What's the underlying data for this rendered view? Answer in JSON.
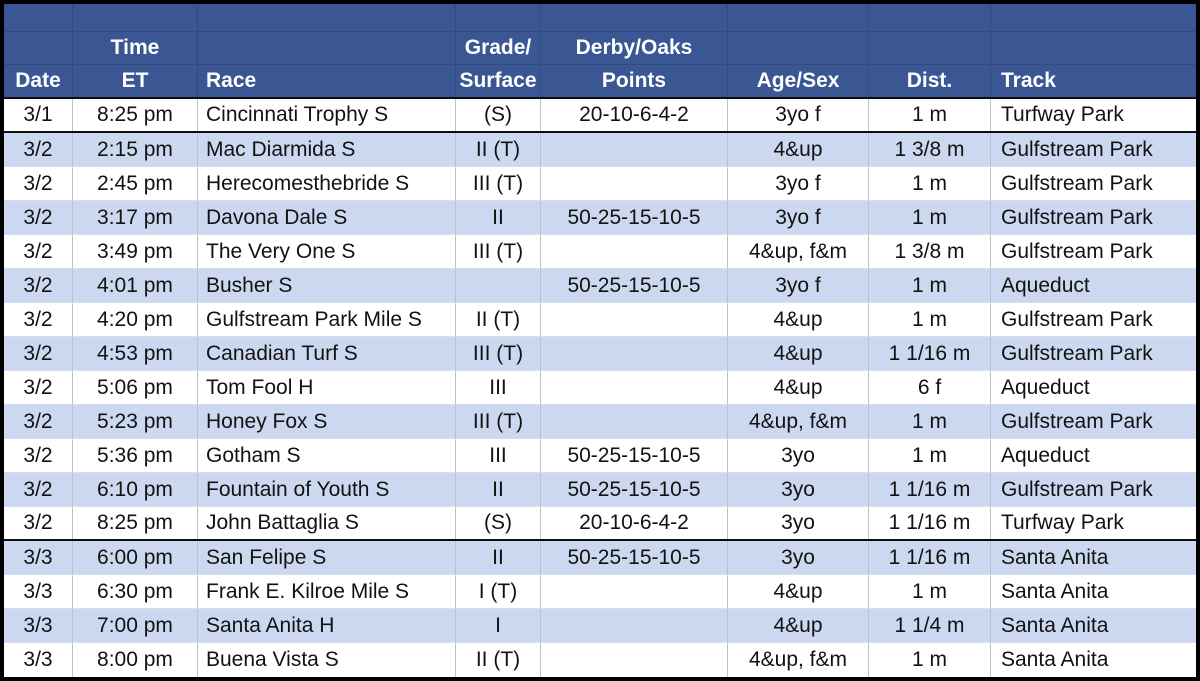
{
  "colors": {
    "header_fill": "#3A5794",
    "header_gridline": "#314B80",
    "banded_row_fill": "#CCD8F0",
    "plain_row_fill": "#FFFFFF",
    "data_gridline": "#B9C1CF",
    "group_separator": "#000000",
    "header_text": "#FFFFFF",
    "data_text": "#121212"
  },
  "table": {
    "columns": [
      {
        "key": "date",
        "line1": "",
        "line2": "Date"
      },
      {
        "key": "time",
        "line1": "Time",
        "line2": "ET"
      },
      {
        "key": "race",
        "line1": "",
        "line2": "Race"
      },
      {
        "key": "grade",
        "line1": "Grade/",
        "line2": "Surface"
      },
      {
        "key": "points",
        "line1": "Derby/Oaks",
        "line2": "Points"
      },
      {
        "key": "age_sex",
        "line1": "",
        "line2": "Age/Sex"
      },
      {
        "key": "dist",
        "line1": "",
        "line2": "Dist."
      },
      {
        "key": "track",
        "line1": "",
        "line2": "Track"
      }
    ],
    "rows": [
      {
        "date": "3/1",
        "time": "8:25 pm",
        "race": "Cincinnati Trophy S",
        "grade": "(S)",
        "points": "20-10-6-4-2",
        "age_sex": "3yo f",
        "dist": "1 m",
        "track": "Turfway Park",
        "shaded": false,
        "group_end": true
      },
      {
        "date": "3/2",
        "time": "2:15 pm",
        "race": "Mac Diarmida S",
        "grade": "II (T)",
        "points": "",
        "age_sex": "4&up",
        "dist": "1 3/8 m",
        "track": "Gulfstream Park",
        "shaded": true,
        "group_end": false
      },
      {
        "date": "3/2",
        "time": "2:45 pm",
        "race": "Herecomesthebride S",
        "grade": "III (T)",
        "points": "",
        "age_sex": "3yo f",
        "dist": "1 m",
        "track": "Gulfstream Park",
        "shaded": false,
        "group_end": false
      },
      {
        "date": "3/2",
        "time": "3:17 pm",
        "race": "Davona Dale S",
        "grade": "II",
        "points": "50-25-15-10-5",
        "age_sex": "3yo f",
        "dist": "1 m",
        "track": "Gulfstream Park",
        "shaded": true,
        "group_end": false
      },
      {
        "date": "3/2",
        "time": "3:49 pm",
        "race": "The Very One S",
        "grade": "III (T)",
        "points": "",
        "age_sex": "4&up, f&m",
        "dist": "1 3/8 m",
        "track": "Gulfstream Park",
        "shaded": false,
        "group_end": false
      },
      {
        "date": "3/2",
        "time": "4:01 pm",
        "race": "Busher S",
        "grade": "",
        "points": "50-25-15-10-5",
        "age_sex": "3yo f",
        "dist": "1 m",
        "track": "Aqueduct",
        "shaded": true,
        "group_end": false
      },
      {
        "date": "3/2",
        "time": "4:20 pm",
        "race": "Gulfstream Park Mile S",
        "grade": "II (T)",
        "points": "",
        "age_sex": "4&up",
        "dist": "1 m",
        "track": "Gulfstream Park",
        "shaded": false,
        "group_end": false
      },
      {
        "date": "3/2",
        "time": "4:53 pm",
        "race": "Canadian Turf S",
        "grade": "III (T)",
        "points": "",
        "age_sex": "4&up",
        "dist": "1 1/16 m",
        "track": "Gulfstream Park",
        "shaded": true,
        "group_end": false
      },
      {
        "date": "3/2",
        "time": "5:06 pm",
        "race": "Tom Fool H",
        "grade": "III",
        "points": "",
        "age_sex": "4&up",
        "dist": "6 f",
        "track": "Aqueduct",
        "shaded": false,
        "group_end": false
      },
      {
        "date": "3/2",
        "time": "5:23 pm",
        "race": "Honey Fox S",
        "grade": "III (T)",
        "points": "",
        "age_sex": "4&up, f&m",
        "dist": "1 m",
        "track": "Gulfstream Park",
        "shaded": true,
        "group_end": false
      },
      {
        "date": "3/2",
        "time": "5:36 pm",
        "race": "Gotham S",
        "grade": "III",
        "points": "50-25-15-10-5",
        "age_sex": "3yo",
        "dist": "1 m",
        "track": "Aqueduct",
        "shaded": false,
        "group_end": false
      },
      {
        "date": "3/2",
        "time": "6:10 pm",
        "race": "Fountain of Youth S",
        "grade": "II",
        "points": "50-25-15-10-5",
        "age_sex": "3yo",
        "dist": "1 1/16 m",
        "track": "Gulfstream Park",
        "shaded": true,
        "group_end": false
      },
      {
        "date": "3/2",
        "time": "8:25 pm",
        "race": "John Battaglia S",
        "grade": "(S)",
        "points": "20-10-6-4-2",
        "age_sex": "3yo",
        "dist": "1 1/16 m",
        "track": "Turfway Park",
        "shaded": false,
        "group_end": true
      },
      {
        "date": "3/3",
        "time": "6:00 pm",
        "race": "San Felipe S",
        "grade": "II",
        "points": "50-25-15-10-5",
        "age_sex": "3yo",
        "dist": "1 1/16 m",
        "track": "Santa Anita",
        "shaded": true,
        "group_end": false
      },
      {
        "date": "3/3",
        "time": "6:30 pm",
        "race": "Frank E. Kilroe Mile S",
        "grade": "I (T)",
        "points": "",
        "age_sex": "4&up",
        "dist": "1 m",
        "track": "Santa Anita",
        "shaded": false,
        "group_end": false
      },
      {
        "date": "3/3",
        "time": "7:00 pm",
        "race": "Santa Anita H",
        "grade": "I",
        "points": "",
        "age_sex": "4&up",
        "dist": "1 1/4 m",
        "track": "Santa Anita",
        "shaded": true,
        "group_end": false
      },
      {
        "date": "3/3",
        "time": "8:00 pm",
        "race": "Buena Vista S",
        "grade": "II (T)",
        "points": "",
        "age_sex": "4&up, f&m",
        "dist": "1 m",
        "track": "Santa Anita",
        "shaded": false,
        "group_end": false
      }
    ]
  }
}
